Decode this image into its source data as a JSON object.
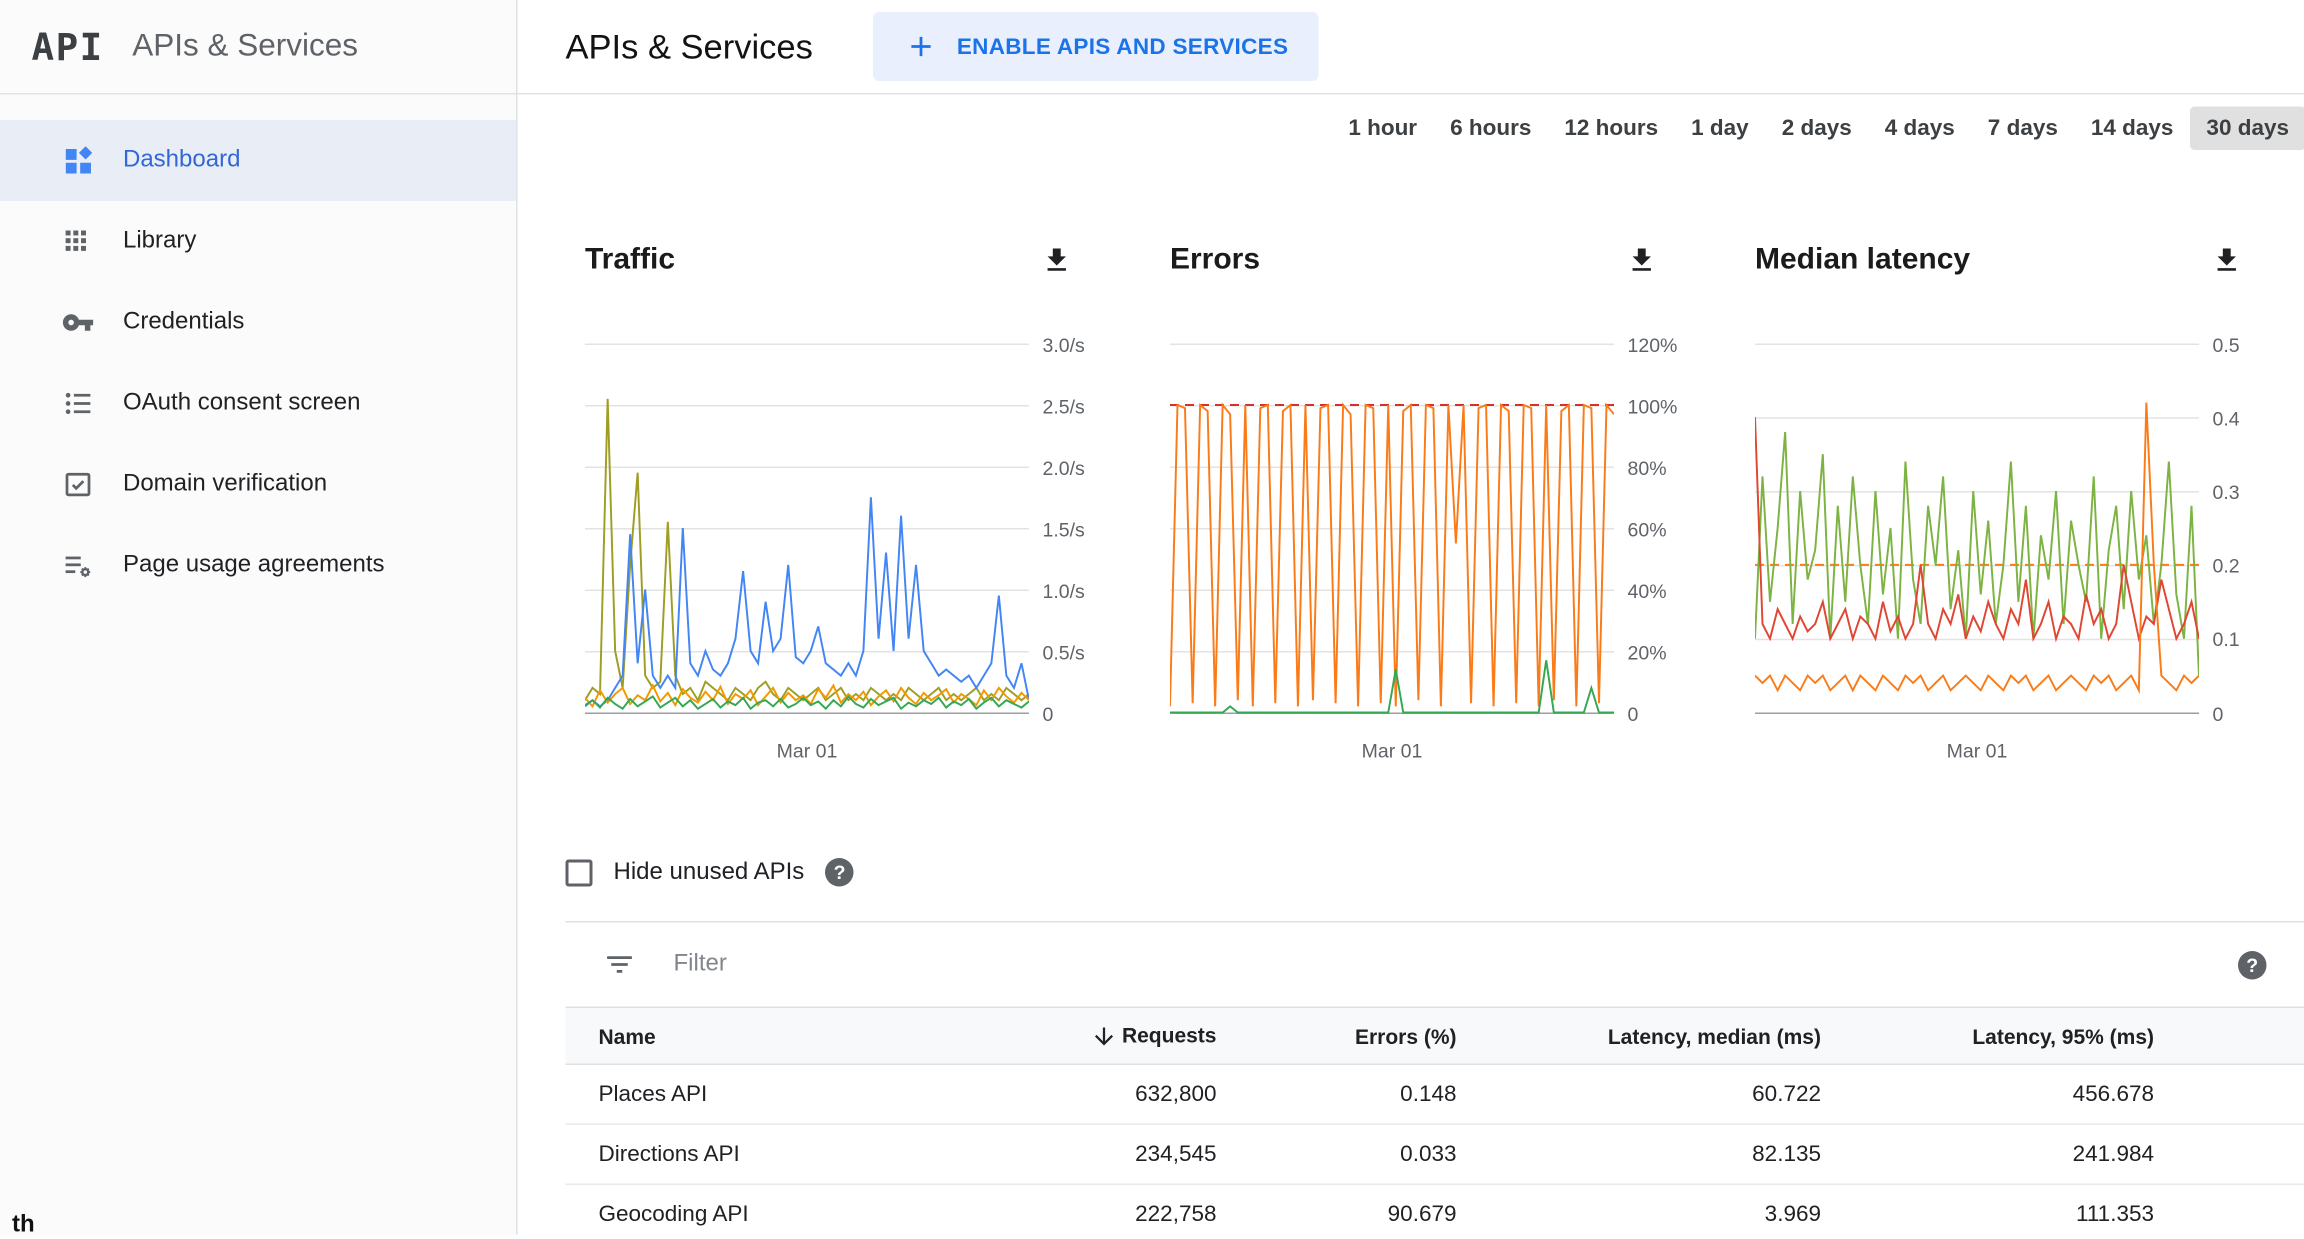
{
  "sidebar": {
    "logo": "API",
    "title": "APIs & Services",
    "items": [
      {
        "label": "Dashboard",
        "icon": "dashboard-icon",
        "active": true
      },
      {
        "label": "Library",
        "icon": "library-icon",
        "active": false
      },
      {
        "label": "Credentials",
        "icon": "key-icon",
        "active": false
      },
      {
        "label": "OAuth consent screen",
        "icon": "consent-icon",
        "active": false
      },
      {
        "label": "Domain verification",
        "icon": "domain-verification-icon",
        "active": false
      },
      {
        "label": "Page usage agreements",
        "icon": "agreements-icon",
        "active": false
      }
    ],
    "footer_artifact": "th"
  },
  "header": {
    "title": "APIs & Services",
    "enable_button": "ENABLE APIS AND SERVICES"
  },
  "time_ranges": {
    "options": [
      "1 hour",
      "6 hours",
      "12 hours",
      "1 day",
      "2 days",
      "4 days",
      "7 days",
      "14 days",
      "30 days"
    ],
    "selected": "30 days"
  },
  "hide_unused": {
    "label": "Hide unused APIs"
  },
  "filter": {
    "placeholder": "Filter"
  },
  "colors": {
    "accent_blue": "#1a73e8",
    "selected_gray": "#e0e0e0",
    "active_nav_bg": "#e8edf6"
  },
  "charts": [
    {
      "type": "line",
      "title": "Traffic",
      "xlabel": "Mar 01",
      "ylim": [
        0,
        3
      ],
      "ticks": [
        {
          "v": 3,
          "label": "3.0/s"
        },
        {
          "v": 2.5,
          "label": "2.5/s"
        },
        {
          "v": 2,
          "label": "2.0/s"
        },
        {
          "v": 1.5,
          "label": "1.5/s"
        },
        {
          "v": 1,
          "label": "1.0/s"
        },
        {
          "v": 0.5,
          "label": "0.5/s"
        },
        {
          "v": 0,
          "label": "0"
        }
      ],
      "series": [
        {
          "name": "olive-api",
          "color": "#9e9d24",
          "dashed": false,
          "values": [
            0.1,
            0.2,
            0.15,
            2.55,
            0.5,
            0.2,
            1.2,
            1.95,
            0.3,
            0.2,
            0.25,
            1.55,
            0.3,
            0.15,
            0.2,
            0.1,
            0.25,
            0.2,
            0.15,
            0.1,
            0.2,
            0.15,
            0.1,
            0.2,
            0.25,
            0.15,
            0.1,
            0.2,
            0.15,
            0.1,
            0.15,
            0.2,
            0.1,
            0.15,
            0.2,
            0.1,
            0.15,
            0.1,
            0.2,
            0.15,
            0.1,
            0.15,
            0.1,
            0.2,
            0.15,
            0.1,
            0.15,
            0.2,
            0.1,
            0.15,
            0.1,
            0.15,
            0.2,
            0.1,
            0.15,
            0.1,
            0.2,
            0.15,
            0.1,
            0.15
          ]
        },
        {
          "name": "blue-api",
          "color": "#4285f4",
          "dashed": false,
          "values": [
            0.05,
            0.1,
            0.05,
            0.1,
            0.2,
            0.3,
            1.45,
            0.4,
            1.0,
            0.3,
            0.2,
            0.3,
            0.2,
            1.5,
            0.4,
            0.3,
            0.5,
            0.35,
            0.3,
            0.4,
            0.6,
            1.15,
            0.5,
            0.4,
            0.9,
            0.5,
            0.6,
            1.2,
            0.45,
            0.4,
            0.5,
            0.7,
            0.4,
            0.35,
            0.3,
            0.4,
            0.3,
            0.5,
            1.75,
            0.6,
            1.3,
            0.5,
            1.6,
            0.6,
            1.2,
            0.5,
            0.4,
            0.3,
            0.35,
            0.3,
            0.25,
            0.3,
            0.2,
            0.3,
            0.4,
            0.95,
            0.3,
            0.2,
            0.4,
            0.1
          ]
        },
        {
          "name": "orange-api",
          "color": "#f29900",
          "dashed": false,
          "values": [
            0.12,
            0.05,
            0.18,
            0.08,
            0.15,
            0.2,
            0.07,
            0.14,
            0.1,
            0.22,
            0.09,
            0.16,
            0.06,
            0.19,
            0.12,
            0.08,
            0.17,
            0.1,
            0.21,
            0.07,
            0.15,
            0.11,
            0.18,
            0.06,
            0.13,
            0.2,
            0.08,
            0.16,
            0.1,
            0.14,
            0.07,
            0.19,
            0.12,
            0.22,
            0.08,
            0.15,
            0.1,
            0.17,
            0.06,
            0.13,
            0.18,
            0.09,
            0.2,
            0.12,
            0.07,
            0.16,
            0.1,
            0.14,
            0.19,
            0.08,
            0.15,
            0.11,
            0.06,
            0.18,
            0.1,
            0.2,
            0.13,
            0.08,
            0.16,
            0.1
          ]
        },
        {
          "name": "green-api",
          "color": "#34a853",
          "dashed": false,
          "values": [
            0.06,
            0.1,
            0.04,
            0.12,
            0.07,
            0.03,
            0.11,
            0.05,
            0.09,
            0.13,
            0.04,
            0.08,
            0.12,
            0.05,
            0.1,
            0.03,
            0.07,
            0.11,
            0.04,
            0.09,
            0.06,
            0.12,
            0.03,
            0.08,
            0.1,
            0.05,
            0.11,
            0.04,
            0.07,
            0.12,
            0.06,
            0.09,
            0.03,
            0.1,
            0.05,
            0.13,
            0.07,
            0.04,
            0.11,
            0.06,
            0.09,
            0.12,
            0.03,
            0.08,
            0.05,
            0.1,
            0.07,
            0.12,
            0.04,
            0.09,
            0.06,
            0.11,
            0.03,
            0.08,
            0.12,
            0.05,
            0.1,
            0.07,
            0.04,
            0.09
          ]
        }
      ]
    },
    {
      "type": "line",
      "title": "Errors",
      "xlabel": "Mar 01",
      "ylim": [
        0,
        120
      ],
      "ticks": [
        {
          "v": 120,
          "label": "120%"
        },
        {
          "v": 100,
          "label": "100%"
        },
        {
          "v": 80,
          "label": "80%"
        },
        {
          "v": 60,
          "label": "60%"
        },
        {
          "v": 40,
          "label": "40%"
        },
        {
          "v": 20,
          "label": "20%"
        },
        {
          "v": 0,
          "label": "0"
        }
      ],
      "series": [
        {
          "name": "error-ceiling",
          "color": "#d93025",
          "dashed": true,
          "values": [
            100,
            100
          ]
        },
        {
          "name": "orange-api-errors",
          "color": "#fa7b17",
          "dashed": false,
          "values": [
            2,
            100,
            99,
            3,
            100,
            98,
            2,
            100,
            97,
            4,
            100,
            2,
            99,
            100,
            3,
            98,
            100,
            2,
            100,
            4,
            99,
            100,
            3,
            100,
            97,
            2,
            100,
            99,
            3,
            100,
            2,
            98,
            100,
            4,
            100,
            99,
            2,
            100,
            55,
            100,
            3,
            99,
            100,
            2,
            100,
            98,
            3,
            100,
            99,
            2,
            100,
            4,
            98,
            100,
            2,
            100,
            99,
            3,
            100,
            97
          ]
        },
        {
          "name": "green-api-errors",
          "color": "#34a853",
          "dashed": false,
          "values": [
            0,
            0,
            0,
            0,
            0,
            0,
            0,
            0,
            2,
            0,
            0,
            0,
            0,
            0,
            0,
            0,
            0,
            0,
            0,
            0,
            0,
            0,
            0,
            0,
            0,
            0,
            0,
            0,
            0,
            0,
            14,
            0,
            0,
            0,
            0,
            0,
            0,
            0,
            0,
            0,
            0,
            0,
            0,
            0,
            0,
            0,
            0,
            0,
            0,
            0,
            17,
            0,
            0,
            0,
            0,
            0,
            8,
            0,
            0,
            0
          ]
        }
      ]
    },
    {
      "type": "line",
      "title": "Median latency",
      "xlabel": "Mar 01",
      "ylim": [
        0,
        0.5
      ],
      "ticks": [
        {
          "v": 0.5,
          "label": "0.5"
        },
        {
          "v": 0.4,
          "label": "0.4"
        },
        {
          "v": 0.3,
          "label": "0.3"
        },
        {
          "v": 0.2,
          "label": "0.2"
        },
        {
          "v": 0.1,
          "label": "0.1"
        },
        {
          "v": 0,
          "label": "0"
        }
      ],
      "series": [
        {
          "name": "latency-reference",
          "color": "#fa7b17",
          "dashed": true,
          "values": [
            0.2,
            0.2
          ]
        },
        {
          "name": "green-api-latency",
          "color": "#7cb342",
          "dashed": false,
          "values": [
            0.1,
            0.32,
            0.15,
            0.25,
            0.38,
            0.12,
            0.3,
            0.18,
            0.22,
            0.35,
            0.1,
            0.28,
            0.15,
            0.32,
            0.2,
            0.12,
            0.3,
            0.16,
            0.25,
            0.1,
            0.34,
            0.18,
            0.12,
            0.28,
            0.2,
            0.32,
            0.14,
            0.22,
            0.1,
            0.3,
            0.16,
            0.26,
            0.12,
            0.2,
            0.34,
            0.15,
            0.28,
            0.1,
            0.24,
            0.18,
            0.3,
            0.12,
            0.26,
            0.2,
            0.15,
            0.32,
            0.1,
            0.22,
            0.28,
            0.14,
            0.3,
            0.18,
            0.24,
            0.12,
            0.2,
            0.34,
            0.16,
            0.1,
            0.28,
            0.05
          ]
        },
        {
          "name": "red-api-latency",
          "color": "#e04631",
          "dashed": false,
          "values": [
            0.4,
            0.12,
            0.1,
            0.14,
            0.12,
            0.1,
            0.13,
            0.11,
            0.12,
            0.15,
            0.1,
            0.12,
            0.14,
            0.1,
            0.13,
            0.12,
            0.1,
            0.15,
            0.11,
            0.13,
            0.1,
            0.12,
            0.2,
            0.12,
            0.1,
            0.14,
            0.12,
            0.16,
            0.1,
            0.13,
            0.11,
            0.15,
            0.12,
            0.1,
            0.14,
            0.12,
            0.18,
            0.1,
            0.12,
            0.15,
            0.1,
            0.13,
            0.12,
            0.1,
            0.16,
            0.12,
            0.14,
            0.1,
            0.12,
            0.2,
            0.15,
            0.1,
            0.13,
            0.12,
            0.18,
            0.14,
            0.1,
            0.12,
            0.15,
            0.1
          ]
        },
        {
          "name": "orange-api-latency",
          "color": "#fa7b17",
          "dashed": false,
          "values": [
            0.05,
            0.04,
            0.05,
            0.03,
            0.05,
            0.04,
            0.03,
            0.05,
            0.04,
            0.05,
            0.03,
            0.04,
            0.05,
            0.03,
            0.05,
            0.04,
            0.03,
            0.05,
            0.04,
            0.03,
            0.05,
            0.04,
            0.05,
            0.03,
            0.04,
            0.05,
            0.03,
            0.04,
            0.05,
            0.04,
            0.03,
            0.05,
            0.04,
            0.03,
            0.05,
            0.04,
            0.05,
            0.03,
            0.04,
            0.05,
            0.03,
            0.04,
            0.05,
            0.04,
            0.03,
            0.05,
            0.04,
            0.05,
            0.03,
            0.04,
            0.05,
            0.03,
            0.42,
            0.2,
            0.05,
            0.04,
            0.03,
            0.05,
            0.04,
            0.05
          ]
        }
      ]
    }
  ],
  "table": {
    "columns": [
      "Name",
      "Requests",
      "Errors (%)",
      "Latency, median (ms)",
      "Latency, 95% (ms)"
    ],
    "sort_column": "Requests",
    "rows": [
      {
        "name": "Places API",
        "requests": "632,800",
        "errors": "0.148",
        "latency_median": "60.722",
        "latency_95": "456.678"
      },
      {
        "name": "Directions API",
        "requests": "234,545",
        "errors": "0.033",
        "latency_median": "82.135",
        "latency_95": "241.984"
      },
      {
        "name": "Geocoding API",
        "requests": "222,758",
        "errors": "90.679",
        "latency_median": "3.969",
        "latency_95": "111.353"
      }
    ]
  }
}
